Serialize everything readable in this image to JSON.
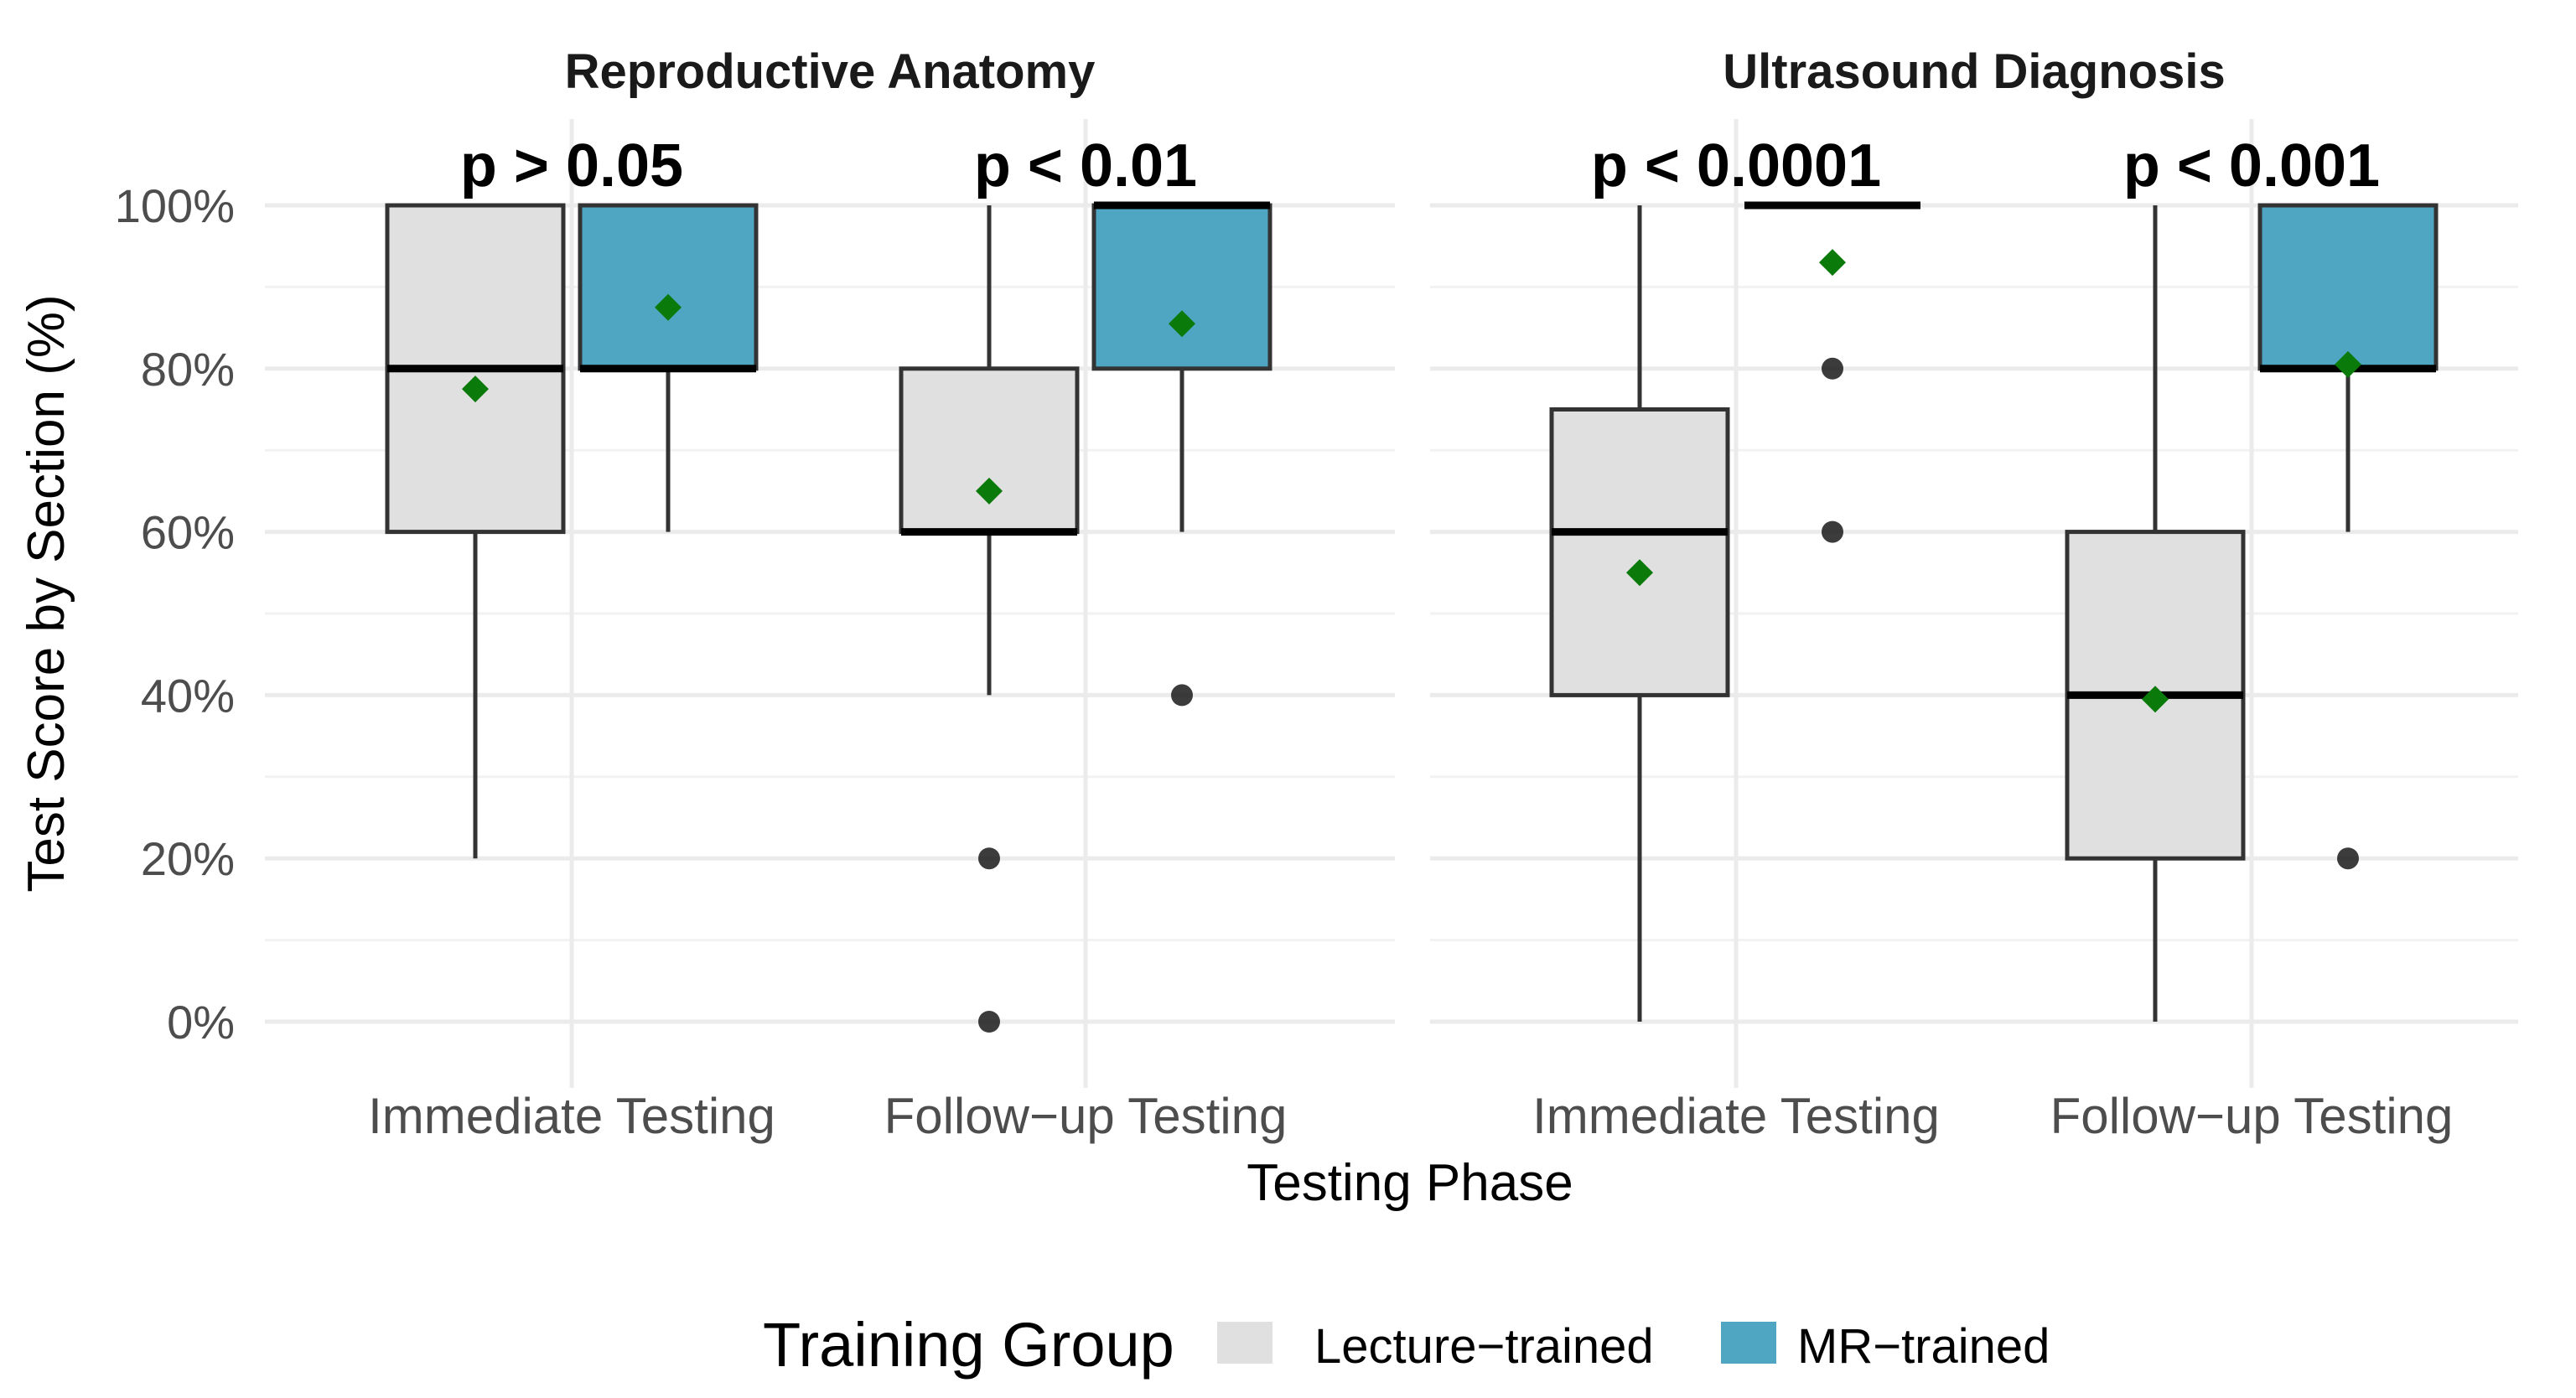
{
  "chart_data": {
    "type": "boxplot",
    "xlabel": "Testing Phase",
    "ylabel": "Test Score by Section (%)",
    "ylim": [
      0,
      100
    ],
    "y_ticks": [
      "0%",
      "20%",
      "40%",
      "60%",
      "80%",
      "100%"
    ],
    "categories": [
      "Immediate Testing",
      "Follow−up Testing"
    ],
    "legend": {
      "title": "Training Group",
      "position": "bottom",
      "entries": [
        {
          "name": "Lecture−trained",
          "color": "#e0e0e0"
        },
        {
          "name": "MR−trained",
          "color": "#4fa6c3"
        }
      ]
    },
    "mean_marker_color": "#0a7a0a",
    "panels": [
      {
        "title": "Reproductive Anatomy",
        "groups": [
          {
            "category": "Immediate Testing",
            "p_label": "p > 0.05",
            "boxes": [
              {
                "series": "Lecture−trained",
                "q1": 60,
                "median": 80,
                "q3": 100,
                "whisker_low": 20,
                "whisker_high": 100,
                "mean": 77.5,
                "outliers": []
              },
              {
                "series": "MR−trained",
                "q1": 80,
                "median": 80,
                "q3": 100,
                "whisker_low": 60,
                "whisker_high": 100,
                "mean": 87.5,
                "outliers": []
              }
            ]
          },
          {
            "category": "Follow−up Testing",
            "p_label": "p < 0.01",
            "boxes": [
              {
                "series": "Lecture−trained",
                "q1": 60,
                "median": 60,
                "q3": 80,
                "whisker_low": 40,
                "whisker_high": 100,
                "mean": 65,
                "outliers": [
                  20,
                  0
                ]
              },
              {
                "series": "MR−trained",
                "q1": 80,
                "median": 100,
                "q3": 100,
                "whisker_low": 60,
                "whisker_high": 100,
                "mean": 85.5,
                "outliers": [
                  40
                ]
              }
            ]
          }
        ]
      },
      {
        "title": "Ultrasound Diagnosis",
        "groups": [
          {
            "category": "Immediate Testing",
            "p_label": "p < 0.0001",
            "boxes": [
              {
                "series": "Lecture−trained",
                "q1": 40,
                "median": 60,
                "q3": 75,
                "whisker_low": 0,
                "whisker_high": 100,
                "mean": 55,
                "outliers": []
              },
              {
                "series": "MR−trained",
                "q1": 100,
                "median": 100,
                "q3": 100,
                "whisker_low": 100,
                "whisker_high": 100,
                "mean": 93,
                "outliers": [
                  80,
                  60
                ]
              }
            ]
          },
          {
            "category": "Follow−up Testing",
            "p_label": "p < 0.001",
            "boxes": [
              {
                "series": "Lecture−trained",
                "q1": 20,
                "median": 40,
                "q3": 60,
                "whisker_low": 0,
                "whisker_high": 100,
                "mean": 39.5,
                "outliers": []
              },
              {
                "series": "MR−trained",
                "q1": 80,
                "median": 80,
                "q3": 100,
                "whisker_low": 60,
                "whisker_high": 100,
                "mean": 80.5,
                "outliers": [
                  20
                ]
              }
            ]
          }
        ]
      }
    ]
  }
}
